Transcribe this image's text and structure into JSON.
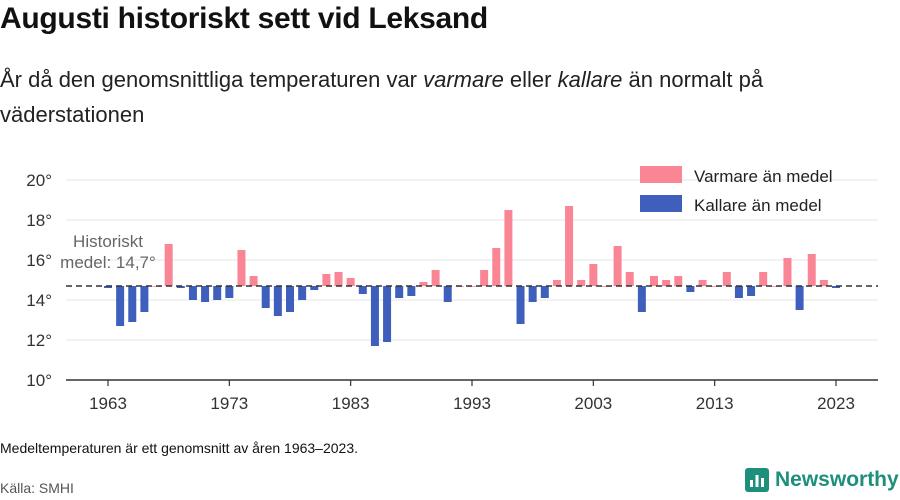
{
  "title": "Augusti historiskt sett vid Leksand",
  "subtitle": {
    "part1": "År då den genomsnittliga temperaturen var ",
    "warm_word": "varmare",
    "part2": " eller ",
    "cold_word": "kallare",
    "part3": " än normalt på väderstationen"
  },
  "footnote": "Medeltemperaturen är ett genomsnitt av åren 1963–2023.",
  "source": "Källa: SMHI",
  "brand": "Newsworthy",
  "colors": {
    "warm": "#f98595",
    "cold": "#3f5fbc",
    "baseline": "#333333",
    "grid": "#e6e6e6",
    "brand": "#1e8f7a"
  },
  "chart_data": {
    "type": "bar",
    "baseline": 14.7,
    "baseline_label_line1": "Historiskt",
    "baseline_label_line2": "medel: 14,7°",
    "ylim": [
      10,
      20
    ],
    "y_ticks": [
      10,
      12,
      14,
      16,
      18,
      20
    ],
    "y_tick_suffix": "°",
    "x_ticks": [
      1963,
      1973,
      1983,
      1993,
      2003,
      2013,
      2023
    ],
    "legend": [
      {
        "label": "Varmare än medel",
        "color": "#f98595"
      },
      {
        "label": "Kallare än medel",
        "color": "#3f5fbc"
      }
    ],
    "x": [
      1963,
      1964,
      1965,
      1966,
      1967,
      1968,
      1969,
      1970,
      1971,
      1972,
      1973,
      1974,
      1975,
      1976,
      1977,
      1978,
      1979,
      1980,
      1981,
      1982,
      1983,
      1984,
      1985,
      1986,
      1987,
      1988,
      1989,
      1990,
      1991,
      1992,
      1993,
      1994,
      1995,
      1996,
      1997,
      1998,
      1999,
      2000,
      2001,
      2002,
      2003,
      2004,
      2005,
      2006,
      2007,
      2008,
      2009,
      2010,
      2011,
      2012,
      2013,
      2014,
      2015,
      2016,
      2017,
      2018,
      2019,
      2020,
      2021,
      2022,
      2023
    ],
    "values": [
      14.6,
      12.7,
      12.9,
      13.4,
      14.7,
      16.8,
      14.6,
      14.0,
      13.9,
      14.0,
      14.1,
      16.5,
      15.2,
      13.6,
      13.2,
      13.4,
      14.0,
      14.5,
      15.3,
      15.4,
      15.1,
      14.3,
      11.7,
      11.9,
      14.1,
      14.2,
      14.9,
      15.5,
      13.9,
      14.7,
      14.7,
      15.5,
      16.6,
      18.5,
      12.8,
      13.9,
      14.1,
      15.0,
      18.7,
      15.0,
      15.8,
      14.7,
      16.7,
      15.4,
      13.4,
      15.2,
      15.0,
      15.2,
      14.4,
      15.0,
      14.7,
      15.4,
      14.1,
      14.2,
      15.4,
      14.7,
      16.1,
      13.5,
      16.3,
      15.0,
      14.6
    ]
  }
}
